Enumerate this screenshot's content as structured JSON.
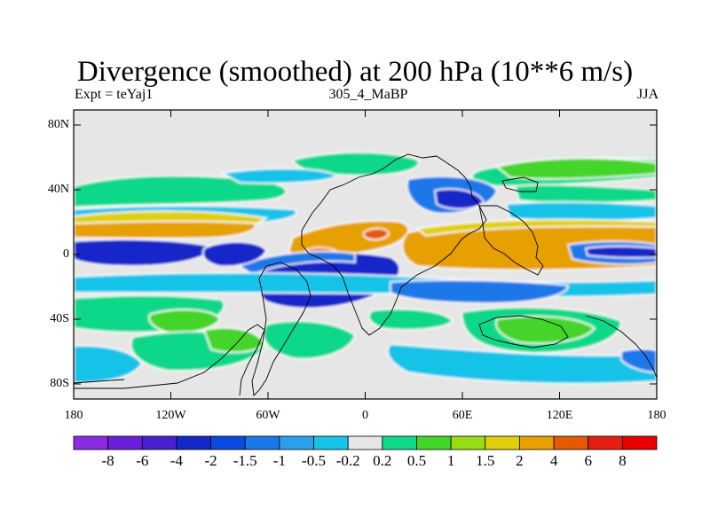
{
  "header": {
    "title": "Divergence (smoothed) at 200 hPa (10**6 m/s)",
    "left": "Expt = teYaj1",
    "center": "305_4_MaBP",
    "right": "JJA"
  },
  "axes": {
    "lat_labels": [
      "80N",
      "40N",
      "0",
      "40S",
      "80S"
    ],
    "lon_labels": [
      "180",
      "120W",
      "60W",
      "0",
      "60E",
      "120E",
      "180"
    ]
  },
  "colorbar": {
    "levels": [
      "-8",
      "-6",
      "-4",
      "-2",
      "-1.5",
      "-1",
      "-0.5",
      "-0.2",
      "0.2",
      "0.5",
      "1",
      "1.5",
      "2",
      "4",
      "6",
      "8"
    ],
    "colors": [
      "#8a2be2",
      "#6a1fd8",
      "#4a1fd0",
      "#1428c8",
      "#0a4ae0",
      "#1a78e8",
      "#2aa0ea",
      "#18c3e8",
      "#e6e6e6",
      "#10d88a",
      "#44d42a",
      "#98dc14",
      "#e0cf0a",
      "#e6a000",
      "#e45a00",
      "#e41e10",
      "#e60000"
    ]
  },
  "map_colors": {
    "background": "#e6e6e6",
    "coast": "#000000",
    "zero_contour": "#ffffff"
  }
}
